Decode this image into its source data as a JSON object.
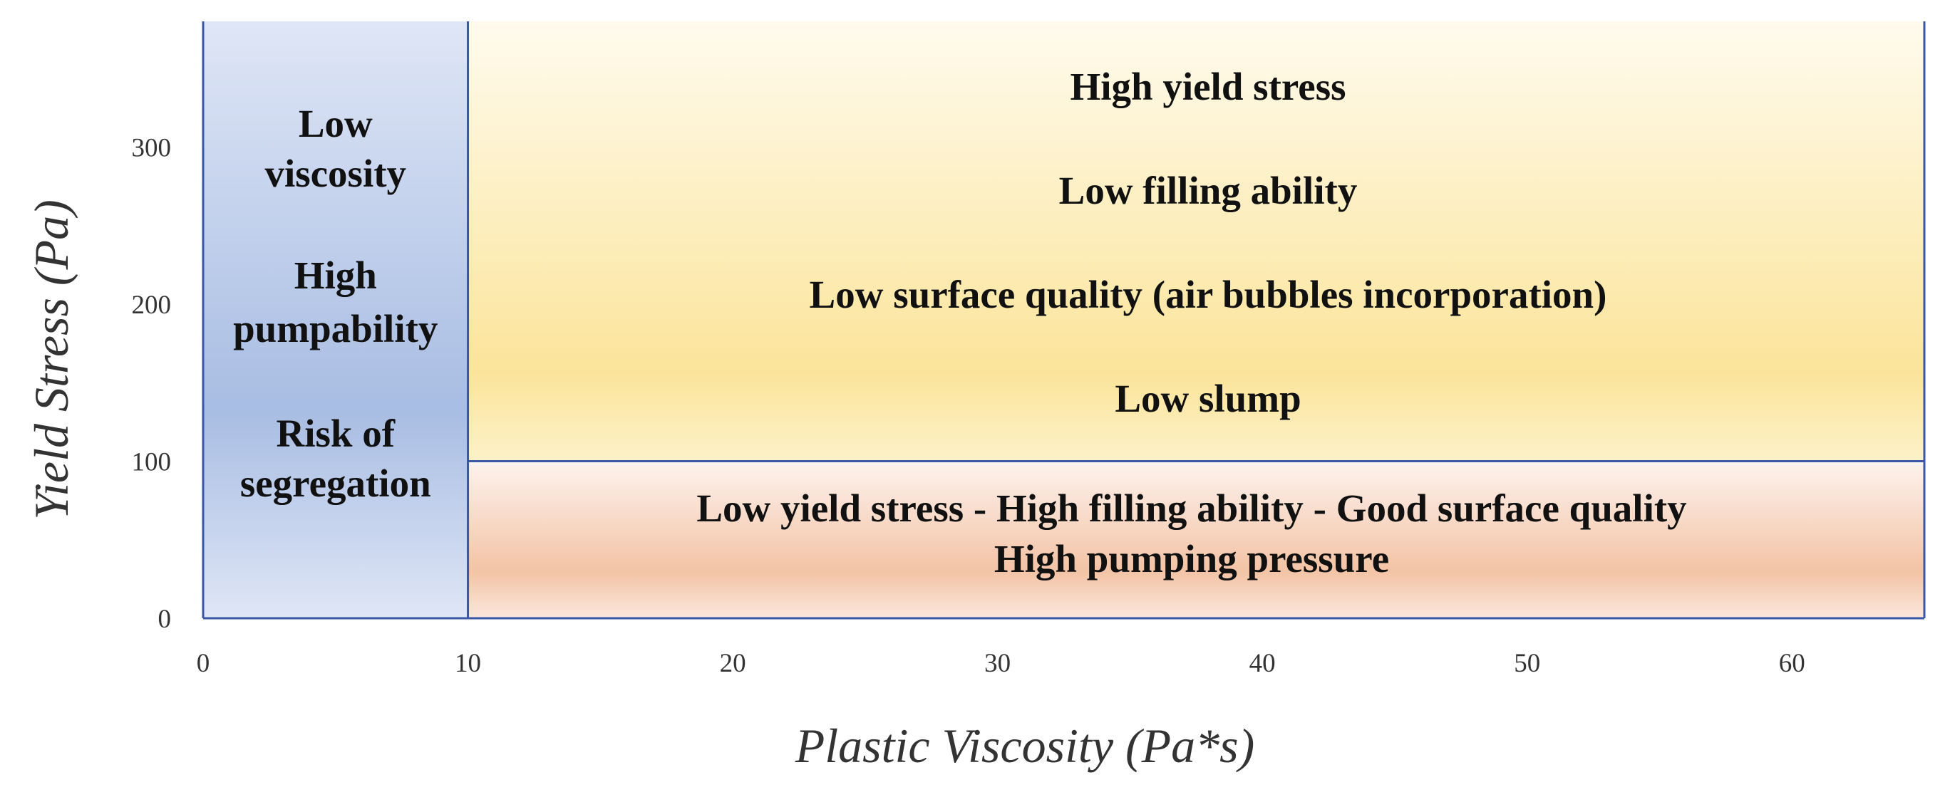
{
  "chart_data": {
    "type": "region_map",
    "title": "",
    "xlabel": "Plastic Viscosity (Pa*s)",
    "ylabel": "Yield Stress (Pa)",
    "xlim": [
      0,
      65
    ],
    "ylim": [
      0,
      380
    ],
    "xticks": [
      0,
      10,
      20,
      30,
      40,
      50,
      60
    ],
    "yticks": [
      0,
      100,
      200,
      300
    ],
    "grid": false,
    "legend": "none",
    "regions": [
      {
        "name": "low-viscosity-region",
        "x": [
          0,
          10
        ],
        "y": [
          0,
          380
        ],
        "color_top": "#dfe6f6",
        "color_mid": "#a8bde3",
        "color_bottom": "#dfe6f6",
        "labels": [
          "Low",
          "viscosity",
          "High",
          "pumpability",
          "Risk of",
          "segregation"
        ]
      },
      {
        "name": "high-yield-stress-region",
        "x": [
          10,
          65
        ],
        "y": [
          100,
          380
        ],
        "color_top": "#fffbee",
        "color_mid": "#fbe49a",
        "color_bottom": "#fdf1c8",
        "labels": [
          "High yield stress",
          "Low filling ability",
          "Low surface quality (air bubbles incorporation)",
          "Low slump"
        ]
      },
      {
        "name": "low-yield-stress-region",
        "x": [
          10,
          65
        ],
        "y": [
          0,
          100
        ],
        "color_top": "#fdf3ee",
        "color_mid": "#f3c3a5",
        "color_bottom": "#fbe7dc",
        "labels": [
          "Low yield stress - High filling ability  - Good surface quality",
          "High pumping pressure"
        ]
      }
    ],
    "border_color": "#3a56a6"
  }
}
